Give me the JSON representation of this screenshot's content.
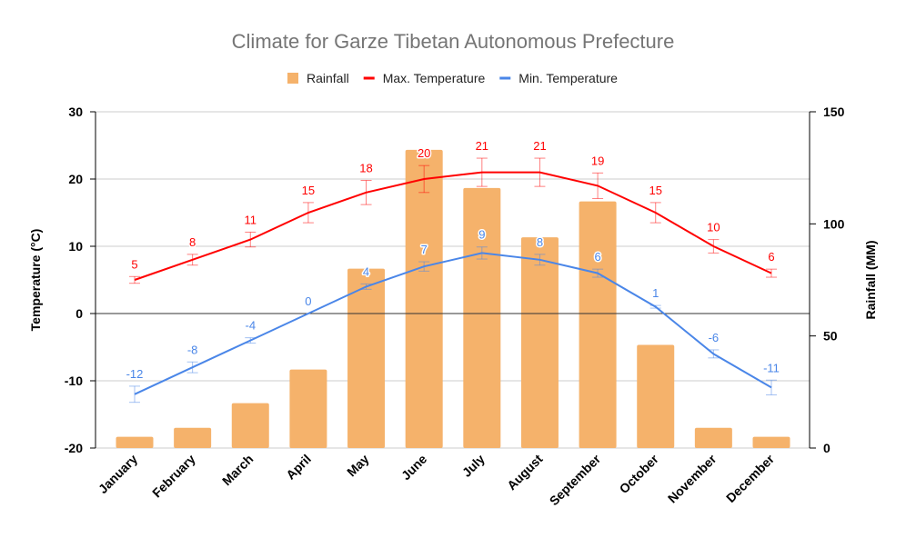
{
  "chart_data": {
    "type": "bar+line",
    "title": "Climate for Garze Tibetan Autonomous Prefecture",
    "categories": [
      "January",
      "February",
      "March",
      "April",
      "May",
      "June",
      "July",
      "August",
      "September",
      "October",
      "November",
      "December"
    ],
    "series": [
      {
        "name": "Rainfall",
        "type": "bar",
        "axis": "right",
        "color": "#f5b26b",
        "values": [
          5,
          9,
          20,
          35,
          80,
          133,
          116,
          94,
          110,
          46,
          9,
          5
        ]
      },
      {
        "name": "Max. Temperature",
        "type": "line",
        "axis": "left",
        "color": "#ff0000",
        "values": [
          5,
          8,
          11,
          15,
          18,
          20,
          21,
          21,
          19,
          15,
          10,
          6
        ],
        "error": [
          0.5,
          0.8,
          1.1,
          1.5,
          1.8,
          2,
          2.1,
          2.1,
          1.9,
          1.5,
          1,
          0.6
        ],
        "data_labels": [
          "5",
          "8",
          "11",
          "15",
          "18",
          "20",
          "21",
          "21",
          "19",
          "15",
          "10",
          "6"
        ]
      },
      {
        "name": "Min. Temperature",
        "type": "line",
        "axis": "left",
        "color": "#4a86e8",
        "values": [
          -12,
          -8,
          -4,
          0,
          4,
          7,
          9,
          8,
          6,
          1,
          -6,
          -11
        ],
        "error": [
          1.2,
          0.8,
          0.4,
          0,
          0.4,
          0.7,
          0.9,
          0.8,
          0.6,
          0.2,
          0.6,
          1.1
        ],
        "data_labels": [
          "-12",
          "-8",
          "-4",
          "0",
          "4",
          "7",
          "9",
          "8",
          "6",
          "1",
          "-6",
          "-11"
        ]
      }
    ],
    "left_axis": {
      "label": "Temperature (°C)",
      "range": [
        -20,
        30
      ],
      "ticks": [
        "30",
        "20",
        "10",
        "0",
        "-10",
        "-20"
      ]
    },
    "right_axis": {
      "label": "Rainfall (MM)",
      "range": [
        0,
        150
      ],
      "ticks": [
        "150",
        "100",
        "50",
        "0"
      ]
    },
    "grid": true,
    "legend": "top"
  }
}
